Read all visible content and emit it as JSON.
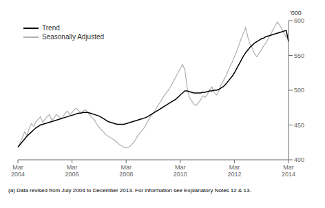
{
  "chart_data": {
    "type": "line",
    "y_label": "'000",
    "footnote": "(a) Data revised from July 2004 to December 2013. For information see Explanatory Notes 12 & 13.",
    "legend": "upper left",
    "grid": false,
    "ylim": [
      400,
      600
    ],
    "yticks": [
      400,
      450,
      500,
      550,
      600
    ],
    "categories": [
      "Mar\n2004",
      null,
      null,
      null,
      null,
      null,
      null,
      null,
      null,
      null,
      null,
      null,
      null,
      null,
      null,
      null,
      null,
      null,
      null,
      null,
      null,
      null,
      null,
      null,
      "Mar\n2006",
      null,
      null,
      null,
      null,
      null,
      null,
      null,
      null,
      null,
      null,
      null,
      null,
      null,
      null,
      null,
      null,
      null,
      null,
      null,
      null,
      null,
      null,
      null,
      "Mar\n2008",
      null,
      null,
      null,
      null,
      null,
      null,
      null,
      null,
      null,
      null,
      null,
      null,
      null,
      null,
      null,
      null,
      null,
      null,
      null,
      null,
      null,
      null,
      null,
      "Mar\n2010",
      null,
      null,
      null,
      null,
      null,
      null,
      null,
      null,
      null,
      null,
      null,
      null,
      null,
      null,
      null,
      null,
      null,
      null,
      null,
      null,
      null,
      null,
      null,
      "Mar\n2012",
      null,
      null,
      null,
      null,
      null,
      null,
      null,
      null,
      null,
      null,
      null,
      null,
      null,
      null,
      null,
      null,
      null,
      null,
      null,
      null,
      null,
      null,
      null,
      "Mar\n2014"
    ],
    "series": [
      {
        "name": "Trend",
        "color": "#000000",
        "values": [
          418,
          422,
          426,
          430,
          434,
          437,
          440,
          443,
          446,
          448,
          450,
          451,
          452,
          453,
          454,
          455,
          456,
          457,
          458,
          459,
          460,
          461,
          462,
          463,
          464,
          465,
          466,
          467,
          467,
          468,
          468,
          468,
          467,
          466,
          465,
          464,
          463,
          461,
          459,
          457,
          455,
          454,
          453,
          452,
          451,
          451,
          451,
          451,
          452,
          453,
          454,
          455,
          456,
          457,
          458,
          459,
          460,
          461,
          463,
          465,
          467,
          469,
          471,
          473,
          475,
          477,
          479,
          481,
          483,
          485,
          487,
          490,
          493,
          496,
          499,
          499,
          498,
          497,
          496,
          496,
          496,
          496,
          497,
          497,
          498,
          499,
          499,
          500,
          500,
          501,
          503,
          505,
          508,
          512,
          516,
          520,
          525,
          531,
          537,
          543,
          549,
          554,
          558,
          562,
          565,
          568,
          570,
          572,
          574,
          575,
          577,
          578,
          579,
          580,
          581,
          582,
          583,
          584,
          585,
          586,
          570
        ]
      },
      {
        "name": "Seasonally Adjusted",
        "color": "#b0b0b0",
        "values": [
          418,
          425,
          432,
          440,
          435,
          445,
          452,
          448,
          455,
          458,
          462,
          454,
          458,
          462,
          465,
          457,
          460,
          465,
          463,
          459,
          462,
          467,
          470,
          464,
          468,
          472,
          474,
          470,
          468,
          470,
          472,
          468,
          464,
          460,
          457,
          451,
          447,
          443,
          440,
          436,
          434,
          432,
          430,
          428,
          425,
          422,
          420,
          418,
          417,
          418,
          420,
          424,
          428,
          434,
          438,
          442,
          446,
          452,
          458,
          463,
          467,
          472,
          478,
          482,
          488,
          493,
          497,
          501,
          507,
          513,
          519,
          525,
          531,
          537,
          530,
          505,
          490,
          485,
          480,
          478,
          482,
          486,
          492,
          490,
          494,
          500,
          505,
          497,
          493,
          498,
          507,
          513,
          519,
          526,
          534,
          540,
          548,
          556,
          565,
          574,
          582,
          590,
          576,
          566,
          560,
          552,
          548,
          554,
          558,
          564,
          568,
          574,
          580,
          586,
          592,
          598,
          594,
          588,
          582,
          576,
          580
        ]
      }
    ]
  }
}
